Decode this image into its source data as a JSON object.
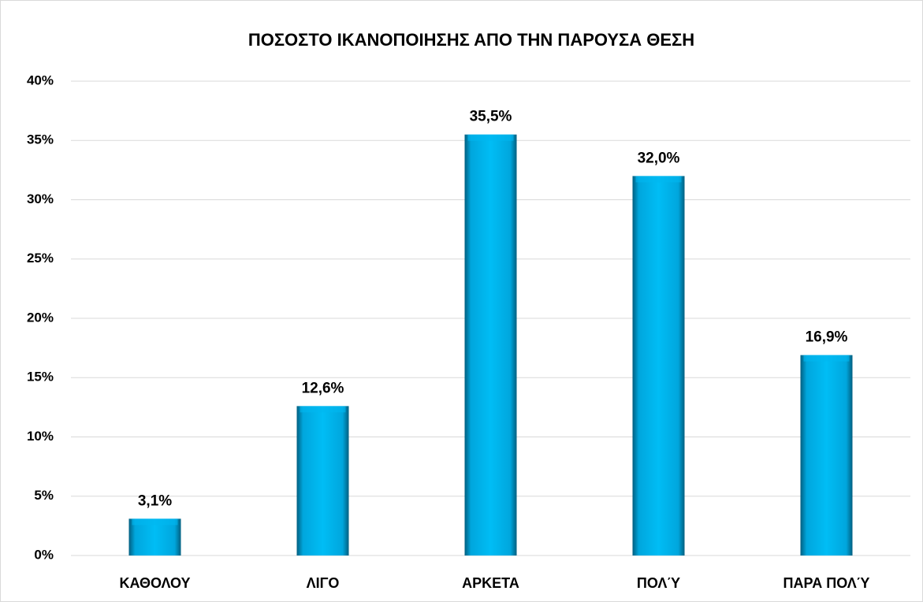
{
  "chart_data": {
    "type": "bar",
    "title": "ΠΟΣΟΣΤΟ ΙΚΑΝΟΠΟΙΗΣΗΣ ΑΠΟ ΤΗΝ ΠΑΡΟΥΣΑ ΘΕΣΗ",
    "categories": [
      "ΚΑΘΟΛΟΥ",
      "ΛΙΓΟ",
      "ΑΡΚΕΤΑ",
      "ΠΟΛΎ",
      "ΠΑΡΑ ΠΟΛΎ"
    ],
    "values": [
      3.1,
      12.6,
      35.5,
      32.0,
      16.9
    ],
    "value_labels": [
      "3,1%",
      "12,6%",
      "35,5%",
      "32,0%",
      "16,9%"
    ],
    "color": "#00b8f0",
    "ylim": [
      0,
      40
    ],
    "yticks": [
      {
        "value": 0,
        "label": "0%"
      },
      {
        "value": 5,
        "label": "5%"
      },
      {
        "value": 10,
        "label": "10%"
      },
      {
        "value": 15,
        "label": "15%"
      },
      {
        "value": 20,
        "label": "20%"
      },
      {
        "value": 25,
        "label": "25%"
      },
      {
        "value": 30,
        "label": "30%"
      },
      {
        "value": 35,
        "label": "35%"
      },
      {
        "value": 40,
        "label": "40%"
      }
    ],
    "grid": true
  }
}
